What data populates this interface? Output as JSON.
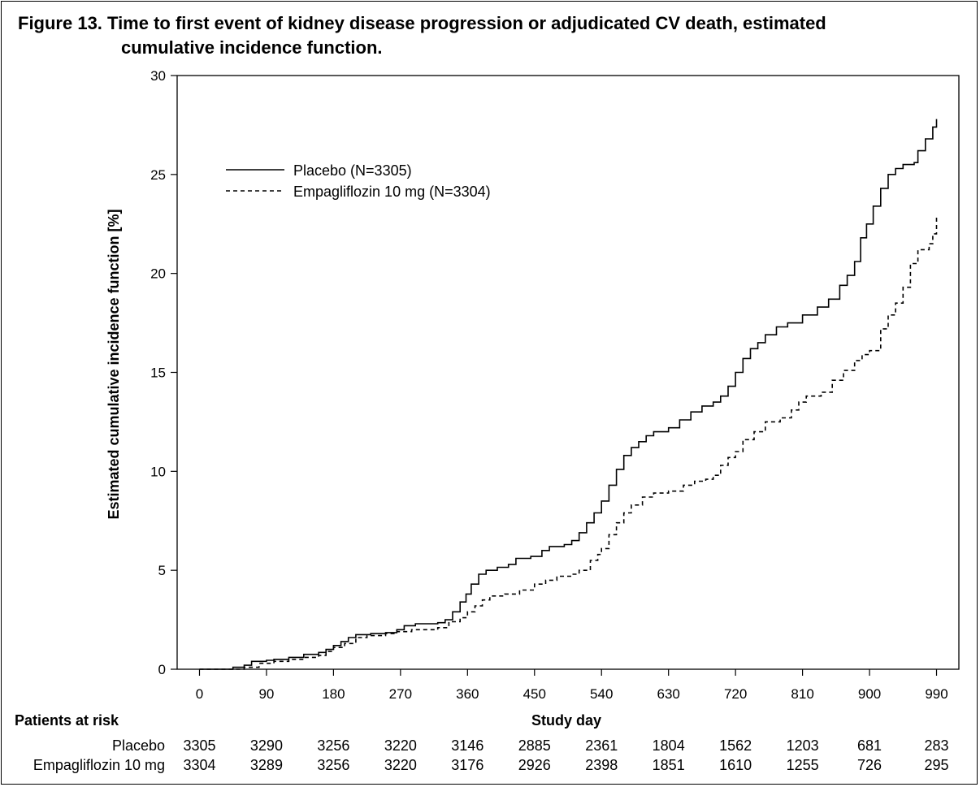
{
  "title_line1": "Figure 13. Time to first event of kidney disease progression or adjudicated CV death, estimated",
  "title_line2": "cumulative incidence function.",
  "chart_data": {
    "type": "line",
    "title": "Figure 13. Time to first event of kidney disease progression or adjudicated CV death, estimated cumulative incidence function.",
    "xlabel": "Study day",
    "ylabel": "Estimated cumulative incidence function [%]",
    "xlim": [
      -30,
      1020
    ],
    "ylim": [
      0,
      30
    ],
    "xticks": [
      0,
      90,
      180,
      270,
      360,
      450,
      540,
      630,
      720,
      810,
      900,
      990
    ],
    "yticks": [
      0,
      5,
      10,
      15,
      20,
      25,
      30
    ],
    "grid": false,
    "legend_position": "top-left",
    "series": [
      {
        "name": "Placebo (N=3305)",
        "style": "solid",
        "color": "#000000",
        "points": [
          [
            0,
            0
          ],
          [
            30,
            0
          ],
          [
            45,
            0.1
          ],
          [
            60,
            0.2
          ],
          [
            70,
            0.4
          ],
          [
            90,
            0.45
          ],
          [
            100,
            0.5
          ],
          [
            120,
            0.6
          ],
          [
            140,
            0.75
          ],
          [
            160,
            0.85
          ],
          [
            170,
            1.0
          ],
          [
            180,
            1.2
          ],
          [
            190,
            1.4
          ],
          [
            200,
            1.6
          ],
          [
            210,
            1.75
          ],
          [
            230,
            1.8
          ],
          [
            250,
            1.85
          ],
          [
            265,
            2.0
          ],
          [
            275,
            2.2
          ],
          [
            290,
            2.3
          ],
          [
            320,
            2.35
          ],
          [
            330,
            2.5
          ],
          [
            340,
            2.9
          ],
          [
            350,
            3.4
          ],
          [
            358,
            3.8
          ],
          [
            365,
            4.3
          ],
          [
            375,
            4.8
          ],
          [
            385,
            5.0
          ],
          [
            400,
            5.15
          ],
          [
            415,
            5.3
          ],
          [
            425,
            5.6
          ],
          [
            445,
            5.7
          ],
          [
            460,
            6.0
          ],
          [
            470,
            6.2
          ],
          [
            490,
            6.3
          ],
          [
            500,
            6.5
          ],
          [
            510,
            6.9
          ],
          [
            520,
            7.4
          ],
          [
            530,
            7.9
          ],
          [
            540,
            8.5
          ],
          [
            550,
            9.3
          ],
          [
            560,
            10.1
          ],
          [
            570,
            10.8
          ],
          [
            580,
            11.2
          ],
          [
            590,
            11.5
          ],
          [
            600,
            11.8
          ],
          [
            610,
            12.0
          ],
          [
            630,
            12.2
          ],
          [
            645,
            12.6
          ],
          [
            660,
            13.0
          ],
          [
            675,
            13.3
          ],
          [
            690,
            13.5
          ],
          [
            700,
            13.8
          ],
          [
            710,
            14.3
          ],
          [
            720,
            15.0
          ],
          [
            730,
            15.7
          ],
          [
            740,
            16.2
          ],
          [
            750,
            16.5
          ],
          [
            760,
            16.9
          ],
          [
            775,
            17.3
          ],
          [
            790,
            17.5
          ],
          [
            810,
            17.9
          ],
          [
            830,
            18.3
          ],
          [
            845,
            18.7
          ],
          [
            860,
            19.4
          ],
          [
            870,
            19.9
          ],
          [
            880,
            20.6
          ],
          [
            888,
            21.8
          ],
          [
            896,
            22.5
          ],
          [
            905,
            23.4
          ],
          [
            915,
            24.3
          ],
          [
            925,
            25.0
          ],
          [
            935,
            25.3
          ],
          [
            945,
            25.5
          ],
          [
            958,
            25.5
          ],
          [
            960,
            25.6
          ],
          [
            965,
            26.2
          ],
          [
            975,
            26.8
          ],
          [
            985,
            27.4
          ],
          [
            990,
            27.8
          ]
        ]
      },
      {
        "name": "Empagliflozin 10 mg (N=3304)",
        "style": "dashed",
        "color": "#000000",
        "points": [
          [
            0,
            0
          ],
          [
            40,
            0
          ],
          [
            60,
            0.1
          ],
          [
            80,
            0.3
          ],
          [
            100,
            0.4
          ],
          [
            120,
            0.5
          ],
          [
            140,
            0.6
          ],
          [
            160,
            0.7
          ],
          [
            170,
            0.9
          ],
          [
            180,
            1.1
          ],
          [
            195,
            1.3
          ],
          [
            210,
            1.6
          ],
          [
            225,
            1.7
          ],
          [
            250,
            1.8
          ],
          [
            265,
            1.9
          ],
          [
            285,
            2.0
          ],
          [
            320,
            2.1
          ],
          [
            335,
            2.4
          ],
          [
            350,
            2.6
          ],
          [
            360,
            2.9
          ],
          [
            370,
            3.2
          ],
          [
            380,
            3.5
          ],
          [
            390,
            3.7
          ],
          [
            410,
            3.8
          ],
          [
            430,
            4.0
          ],
          [
            450,
            4.3
          ],
          [
            465,
            4.5
          ],
          [
            480,
            4.7
          ],
          [
            500,
            4.8
          ],
          [
            510,
            5.0
          ],
          [
            525,
            5.5
          ],
          [
            535,
            5.8
          ],
          [
            540,
            6.1
          ],
          [
            550,
            6.8
          ],
          [
            560,
            7.4
          ],
          [
            570,
            7.9
          ],
          [
            580,
            8.3
          ],
          [
            595,
            8.7
          ],
          [
            610,
            8.9
          ],
          [
            630,
            9.0
          ],
          [
            650,
            9.3
          ],
          [
            665,
            9.5
          ],
          [
            680,
            9.6
          ],
          [
            690,
            9.8
          ],
          [
            700,
            10.3
          ],
          [
            710,
            10.7
          ],
          [
            720,
            11.0
          ],
          [
            730,
            11.6
          ],
          [
            745,
            12.0
          ],
          [
            760,
            12.5
          ],
          [
            780,
            12.7
          ],
          [
            795,
            13.1
          ],
          [
            805,
            13.5
          ],
          [
            815,
            13.8
          ],
          [
            835,
            14.0
          ],
          [
            850,
            14.6
          ],
          [
            865,
            15.1
          ],
          [
            880,
            15.6
          ],
          [
            890,
            15.9
          ],
          [
            900,
            16.1
          ],
          [
            915,
            17.2
          ],
          [
            925,
            17.9
          ],
          [
            935,
            18.5
          ],
          [
            945,
            19.3
          ],
          [
            955,
            20.5
          ],
          [
            965,
            21.2
          ],
          [
            980,
            21.5
          ],
          [
            985,
            22.0
          ],
          [
            990,
            22.9
          ]
        ]
      }
    ],
    "at_risk": {
      "header": "Patients at risk",
      "rows": [
        {
          "label": "Placebo",
          "values": [
            3305,
            3290,
            3256,
            3220,
            3146,
            2885,
            2361,
            1804,
            1562,
            1203,
            681,
            283
          ]
        },
        {
          "label": "Empagliflozin 10 mg",
          "values": [
            3304,
            3289,
            3256,
            3220,
            3176,
            2926,
            2398,
            1851,
            1610,
            1255,
            726,
            295
          ]
        }
      ]
    }
  }
}
